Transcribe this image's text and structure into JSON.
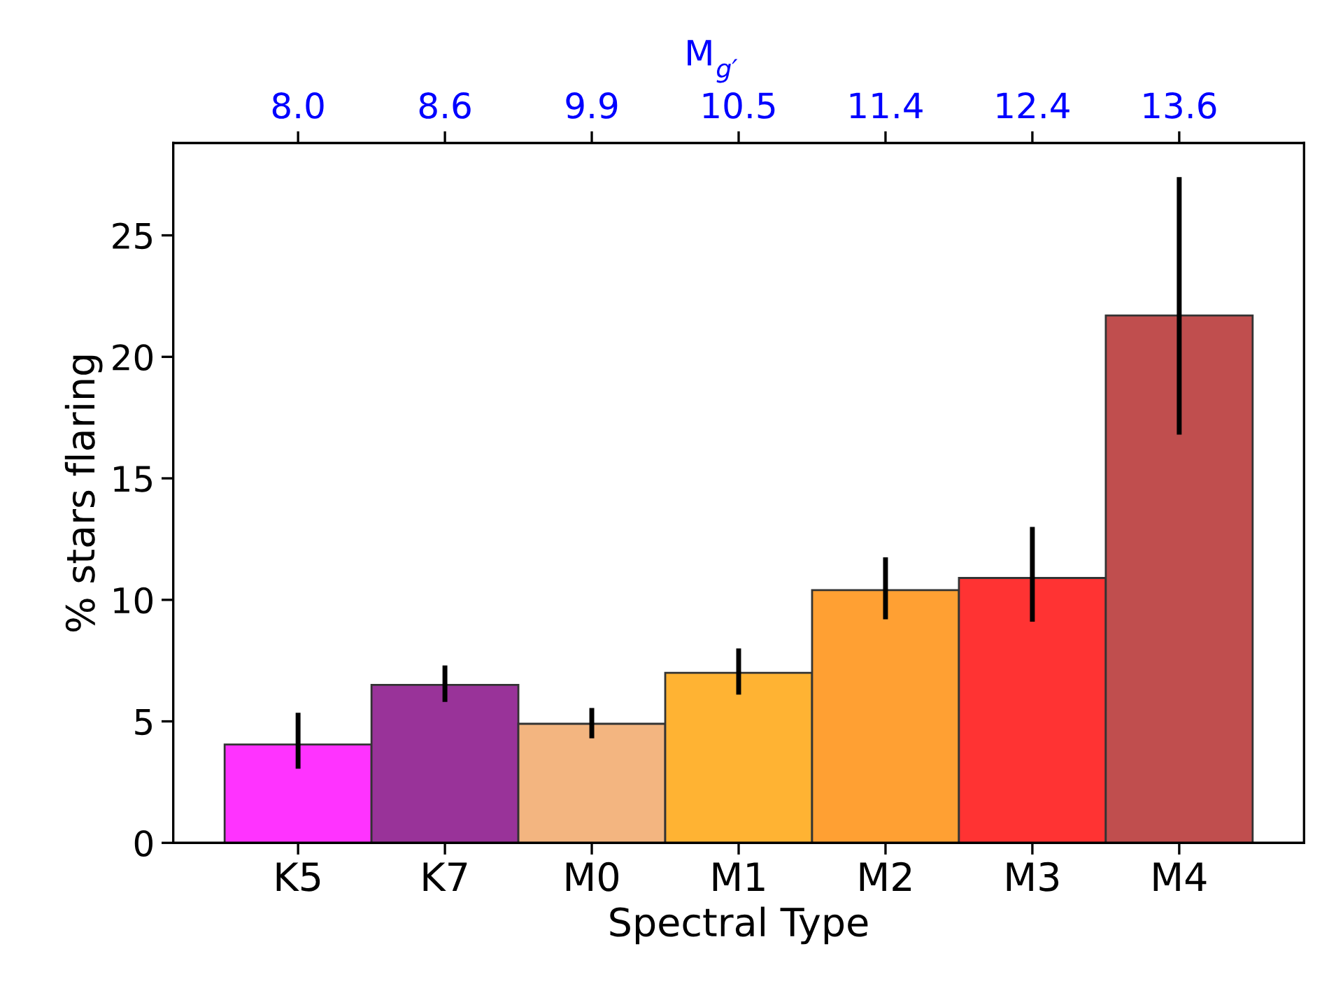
{
  "chart_data": {
    "type": "bar",
    "categories": [
      "K5",
      "K7",
      "M0",
      "M1",
      "M2",
      "M3",
      "M4"
    ],
    "values": [
      4.05,
      6.5,
      4.9,
      7.0,
      10.4,
      10.9,
      21.7
    ],
    "colors": [
      "#ff33ff",
      "#993399",
      "#f3b580",
      "#ffb333",
      "#ffa033",
      "#ff3333",
      "#c04e4e"
    ],
    "errors": [
      [
        3.05,
        5.35
      ],
      [
        5.8,
        7.3
      ],
      [
        4.3,
        5.55
      ],
      [
        6.1,
        8.0
      ],
      [
        9.2,
        11.75
      ],
      [
        9.1,
        13.0
      ],
      [
        16.8,
        27.4
      ]
    ],
    "xlabel": "Spectral Type",
    "ylabel": "% stars flaring",
    "x2label": "M$_{g′}$",
    "annotations": [
      {
        "text": "8.0",
        "x": "K5"
      },
      {
        "text": "8.6",
        "x": "K7"
      },
      {
        "text": "9.9",
        "x": "M0"
      },
      {
        "text": "10.5",
        "x": "M1"
      },
      {
        "text": "11.4",
        "x": "M2"
      },
      {
        "text": "12.4",
        "x": "M3"
      },
      {
        "text": "13.6",
        "x": "M4"
      }
    ],
    "ylim": [
      0,
      28.8
    ],
    "yticks": [
      0,
      5,
      10,
      15,
      20,
      25
    ],
    "grid": false
  }
}
